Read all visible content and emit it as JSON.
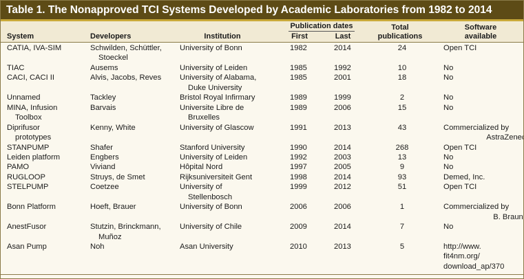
{
  "table": {
    "title": "Table 1.  The Nonapproved TCI Systems Developed by Academic Laboratories from 1982 to 2014",
    "header": {
      "system": "System",
      "developers": "Developers",
      "institution": "Institution",
      "publication_dates": "Publication dates",
      "first": "First",
      "last": "Last",
      "total": [
        "Total",
        "publications"
      ],
      "software": [
        "Software",
        "available"
      ]
    },
    "rows": [
      [
        [
          "CATIA, IVA-SIM"
        ],
        [
          "Schwilden, Schüttler,",
          "Stoeckel"
        ],
        [
          "University of Bonn"
        ],
        1982,
        2014,
        24,
        [
          "Open TCI"
        ]
      ],
      [
        [
          "TIAC"
        ],
        [
          "Ausems"
        ],
        [
          "University of Leiden"
        ],
        1985,
        1992,
        10,
        [
          "No"
        ]
      ],
      [
        [
          "CACI, CACI II"
        ],
        [
          "Alvis, Jacobs, Reves"
        ],
        [
          "University of Alabama,",
          "Duke University"
        ],
        1985,
        2001,
        18,
        [
          "No"
        ]
      ],
      [
        [
          "Unnamed"
        ],
        [
          "Tackley"
        ],
        [
          "Bristol Royal Infirmary"
        ],
        1989,
        1999,
        2,
        [
          "No"
        ]
      ],
      [
        [
          "MINA, Infusion",
          "Toolbox"
        ],
        [
          "Barvais"
        ],
        [
          "Universite Libre de",
          "Bruxelles"
        ],
        1989,
        2006,
        15,
        [
          "No"
        ]
      ],
      [
        [
          "Diprifusor",
          "prototypes"
        ],
        [
          "Kenny, White"
        ],
        [
          "University of Glascow"
        ],
        1991,
        2013,
        43,
        [
          "Commercialized by",
          "AstraZeneca"
        ]
      ],
      [
        [
          "STANPUMP"
        ],
        [
          "Shafer"
        ],
        [
          "Stanford University"
        ],
        1990,
        2014,
        268,
        [
          "Open TCI"
        ]
      ],
      [
        [
          "Leiden platform"
        ],
        [
          "Engbers"
        ],
        [
          "University of Leiden"
        ],
        1992,
        2003,
        13,
        [
          "No"
        ]
      ],
      [
        [
          "PAMO"
        ],
        [
          "Viviand"
        ],
        [
          "Hôpital Nord"
        ],
        1997,
        2005,
        9,
        [
          "No"
        ]
      ],
      [
        [
          "RUGLOOP"
        ],
        [
          "Struys, de Smet"
        ],
        [
          "Rijksuniversiteit Gent"
        ],
        1998,
        2014,
        93,
        [
          "Demed, Inc."
        ]
      ],
      [
        [
          "STELPUMP"
        ],
        [
          "Coetzee"
        ],
        [
          "University of",
          "Stellenbosch"
        ],
        1999,
        2012,
        51,
        [
          "Open TCI"
        ]
      ],
      [
        [
          "Bonn Platform"
        ],
        [
          "Hoeft, Brauer"
        ],
        [
          "University of Bonn"
        ],
        2006,
        2006,
        1,
        [
          "Commercialized by",
          "B. Braun"
        ]
      ],
      [
        [
          "AnestFusor"
        ],
        [
          "Stutzin, Brinckmann,",
          "Muñoz"
        ],
        [
          "University of Chile"
        ],
        2009,
        2014,
        7,
        [
          "No"
        ]
      ],
      [
        [
          "Asan Pump"
        ],
        [
          "Noh"
        ],
        [
          "Asan University"
        ],
        2010,
        2013,
        5,
        [
          "http://www.",
          "fit4nm.org/",
          "download_ap/370"
        ]
      ]
    ]
  }
}
